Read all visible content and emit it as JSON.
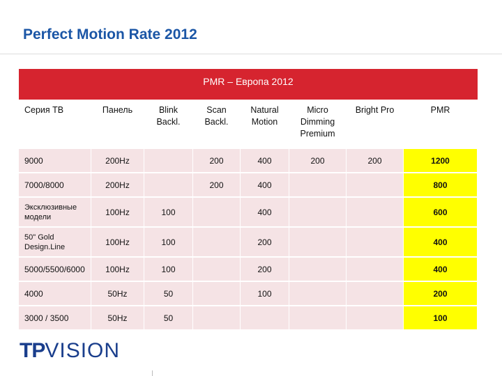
{
  "title": "Perfect Motion Rate 2012",
  "banner": "PMR – Европа 2012",
  "headers": [
    "Серия ТВ",
    "Панель",
    "Blink Backl.",
    "Scan Backl.",
    "Natural Motion",
    "Micro Dimming Premium",
    "Bright Pro",
    "PMR"
  ],
  "rows": [
    [
      "9000",
      "200Hz",
      "",
      "200",
      "400",
      "200",
      "200",
      "1200"
    ],
    [
      "7000/8000",
      "200Hz",
      "",
      "200",
      "400",
      "",
      "",
      "800"
    ],
    [
      "Эксклюзивные модели",
      "100Hz",
      "100",
      "",
      "400",
      "",
      "",
      "600"
    ],
    [
      "50\" Gold Design.Line",
      "100Hz",
      "100",
      "",
      "200",
      "",
      "",
      "400"
    ],
    [
      "5000/5500/6000",
      "100Hz",
      "100",
      "",
      "200",
      "",
      "",
      "400"
    ],
    [
      "4000",
      "50Hz",
      "50",
      "",
      "100",
      "",
      "",
      "200"
    ],
    [
      "3000 / 3500",
      "50Hz",
      "50",
      "",
      "",
      "",
      "",
      "100"
    ]
  ],
  "logo": {
    "part1": "TP",
    "part2": "VISION"
  },
  "colors": {
    "title": "#1b56a6",
    "banner": "#d6242f",
    "row_bg": "#f5e3e5",
    "pmr_highlight": "#ffff00",
    "logo": "#1a3e8c"
  }
}
